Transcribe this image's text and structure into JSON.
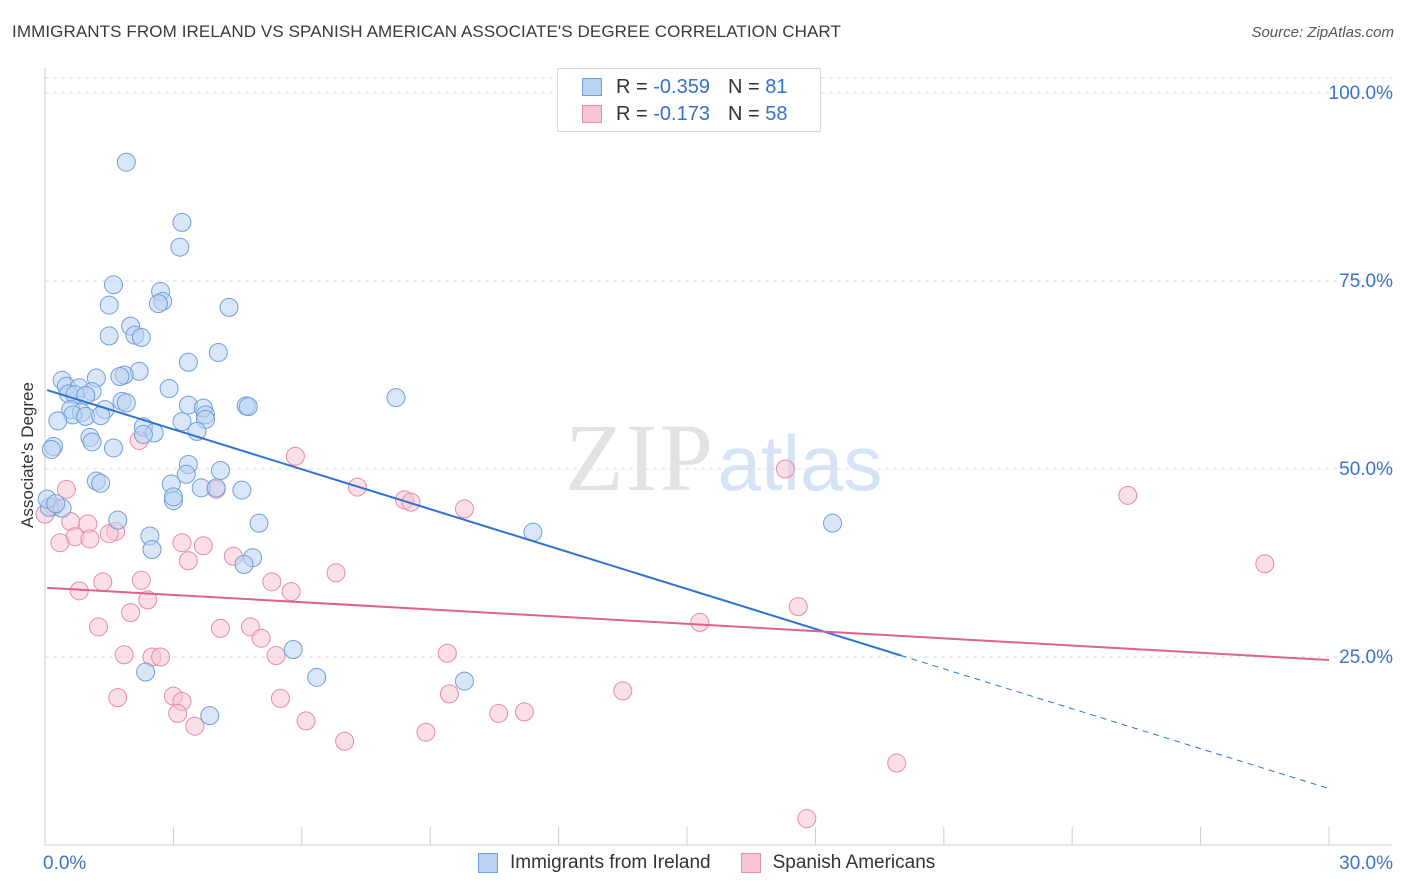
{
  "title": "IMMIGRANTS FROM IRELAND VS SPANISH AMERICAN ASSOCIATE'S DEGREE CORRELATION CHART",
  "source": "Source: ZipAtlas.com",
  "watermark": {
    "zip": "ZIP",
    "atlas": "atlas"
  },
  "legend": {
    "rows": [
      {
        "r_label": "R =",
        "r_value": "-0.359",
        "n_label": "N =",
        "n_value": "81"
      },
      {
        "r_label": "R =",
        "r_value": "-0.173",
        "n_label": "N =",
        "n_value": "58"
      }
    ]
  },
  "colors": {
    "blue_fill": "#b9d1f2",
    "blue_stroke": "#6f9fd8",
    "blue_line": "#2f72d2",
    "pink_fill": "#f7c5d4",
    "pink_stroke": "#e88aa8",
    "pink_line": "#e0618c",
    "axis_text": "#3a74c7",
    "grid": "#dcdcdc"
  },
  "chart_data": {
    "type": "scatter",
    "title": "IMMIGRANTS FROM IRELAND VS SPANISH AMERICAN ASSOCIATE'S DEGREE CORRELATION CHART",
    "xlabel": "",
    "ylabel": "Associate's Degree",
    "xlim": [
      0,
      30
    ],
    "ylim": [
      0,
      102
    ],
    "x_tick_labels": [
      "0.0%",
      "30.0%"
    ],
    "y_ticks": [
      25,
      50,
      75,
      100
    ],
    "y_tick_labels": [
      "25.0%",
      "50.0%",
      "75.0%",
      "100.0%"
    ],
    "grid": true,
    "legend_position": "bottom-center",
    "series": [
      {
        "name": "Immigrants from Ireland",
        "color": "#b9d1f2",
        "points": [
          [
            1.9,
            90.8
          ],
          [
            3.2,
            82.8
          ],
          [
            3.15,
            79.5
          ],
          [
            1.6,
            74.5
          ],
          [
            2.7,
            73.6
          ],
          [
            2.75,
            72.3
          ],
          [
            2.65,
            72.0
          ],
          [
            1.5,
            71.8
          ],
          [
            4.3,
            71.5
          ],
          [
            2.0,
            69.0
          ],
          [
            2.1,
            67.8
          ],
          [
            2.25,
            67.5
          ],
          [
            1.5,
            67.7
          ],
          [
            4.05,
            65.5
          ],
          [
            3.35,
            64.2
          ],
          [
            2.2,
            63.0
          ],
          [
            1.85,
            62.5
          ],
          [
            1.75,
            62.3
          ],
          [
            1.2,
            62.1
          ],
          [
            0.4,
            61.8
          ],
          [
            0.5,
            61.0
          ],
          [
            0.8,
            60.8
          ],
          [
            1.1,
            60.3
          ],
          [
            2.9,
            60.7
          ],
          [
            0.55,
            60.0
          ],
          [
            0.7,
            59.9
          ],
          [
            0.95,
            59.8
          ],
          [
            8.2,
            59.5
          ],
          [
            1.8,
            59.0
          ],
          [
            1.9,
            58.8
          ],
          [
            3.35,
            58.5
          ],
          [
            4.7,
            58.4
          ],
          [
            4.75,
            58.3
          ],
          [
            3.7,
            58.1
          ],
          [
            1.4,
            57.9
          ],
          [
            0.6,
            57.9
          ],
          [
            0.85,
            57.5
          ],
          [
            0.65,
            57.2
          ],
          [
            0.95,
            57.0
          ],
          [
            1.3,
            57.1
          ],
          [
            3.75,
            57.2
          ],
          [
            3.75,
            56.6
          ],
          [
            0.3,
            56.4
          ],
          [
            3.2,
            56.3
          ],
          [
            2.3,
            55.6
          ],
          [
            3.55,
            55.0
          ],
          [
            2.55,
            54.8
          ],
          [
            2.3,
            54.6
          ],
          [
            1.05,
            54.2
          ],
          [
            1.1,
            53.6
          ],
          [
            0.2,
            53.0
          ],
          [
            1.6,
            52.8
          ],
          [
            0.15,
            52.6
          ],
          [
            3.35,
            50.6
          ],
          [
            4.1,
            49.8
          ],
          [
            3.3,
            49.3
          ],
          [
            1.2,
            48.4
          ],
          [
            1.3,
            48.1
          ],
          [
            2.95,
            48.0
          ],
          [
            3.65,
            47.5
          ],
          [
            4.0,
            47.5
          ],
          [
            4.6,
            47.2
          ],
          [
            3.0,
            45.8
          ],
          [
            0.1,
            44.9
          ],
          [
            0.4,
            44.8
          ],
          [
            1.7,
            43.2
          ],
          [
            5.0,
            42.8
          ],
          [
            18.4,
            42.8
          ],
          [
            11.4,
            41.6
          ],
          [
            2.45,
            41.1
          ],
          [
            2.5,
            39.3
          ],
          [
            4.85,
            38.2
          ],
          [
            4.65,
            37.3
          ],
          [
            5.8,
            26.0
          ],
          [
            6.35,
            22.3
          ],
          [
            9.8,
            21.8
          ],
          [
            2.35,
            23.0
          ],
          [
            3.85,
            17.2
          ],
          [
            0.05,
            46.0
          ],
          [
            0.25,
            45.4
          ],
          [
            3.0,
            46.3
          ]
        ]
      },
      {
        "name": "Spanish Americans",
        "color": "#f7c5d4",
        "points": [
          [
            0.2,
            45.0
          ],
          [
            0.0,
            44.0
          ],
          [
            0.5,
            47.3
          ],
          [
            5.85,
            51.7
          ],
          [
            7.3,
            47.6
          ],
          [
            8.4,
            45.9
          ],
          [
            8.55,
            45.6
          ],
          [
            9.8,
            44.7
          ],
          [
            17.3,
            50.0
          ],
          [
            25.3,
            46.5
          ],
          [
            28.5,
            37.4
          ],
          [
            2.2,
            53.8
          ],
          [
            4.0,
            47.3
          ],
          [
            0.6,
            43.0
          ],
          [
            1.0,
            42.7
          ],
          [
            1.65,
            41.7
          ],
          [
            1.5,
            41.4
          ],
          [
            0.7,
            41.0
          ],
          [
            1.05,
            40.7
          ],
          [
            0.35,
            40.2
          ],
          [
            3.2,
            40.2
          ],
          [
            3.7,
            39.8
          ],
          [
            4.4,
            38.4
          ],
          [
            3.35,
            37.8
          ],
          [
            6.8,
            36.2
          ],
          [
            2.25,
            35.2
          ],
          [
            1.35,
            35.0
          ],
          [
            5.3,
            35.0
          ],
          [
            0.8,
            33.8
          ],
          [
            5.75,
            33.7
          ],
          [
            2.4,
            32.6
          ],
          [
            2.0,
            30.9
          ],
          [
            17.6,
            31.7
          ],
          [
            15.3,
            29.6
          ],
          [
            1.25,
            29.0
          ],
          [
            4.1,
            28.8
          ],
          [
            4.8,
            29.0
          ],
          [
            5.05,
            27.5
          ],
          [
            9.4,
            25.5
          ],
          [
            1.85,
            25.3
          ],
          [
            2.5,
            25.0
          ],
          [
            2.7,
            25.0
          ],
          [
            5.4,
            25.2
          ],
          [
            3.0,
            19.8
          ],
          [
            3.2,
            19.1
          ],
          [
            1.7,
            19.6
          ],
          [
            5.5,
            19.5
          ],
          [
            13.5,
            20.5
          ],
          [
            9.45,
            20.1
          ],
          [
            3.1,
            17.5
          ],
          [
            10.6,
            17.5
          ],
          [
            11.2,
            17.7
          ],
          [
            6.1,
            16.5
          ],
          [
            3.5,
            15.8
          ],
          [
            8.9,
            15.0
          ],
          [
            7.0,
            13.8
          ],
          [
            19.9,
            10.9
          ],
          [
            17.8,
            3.5
          ]
        ]
      }
    ],
    "trend_lines": [
      {
        "series": "Immigrants from Ireland",
        "solid": [
          [
            0.05,
            60.5
          ],
          [
            20.0,
            25.2
          ]
        ],
        "dashed": [
          [
            20.0,
            25.2
          ],
          [
            30.0,
            7.5
          ]
        ]
      },
      {
        "series": "Spanish Americans",
        "solid": [
          [
            0.05,
            34.2
          ],
          [
            30.0,
            24.6
          ]
        ]
      }
    ]
  },
  "bottom_legend": {
    "items": [
      "Immigrants from Ireland",
      "Spanish Americans"
    ]
  }
}
